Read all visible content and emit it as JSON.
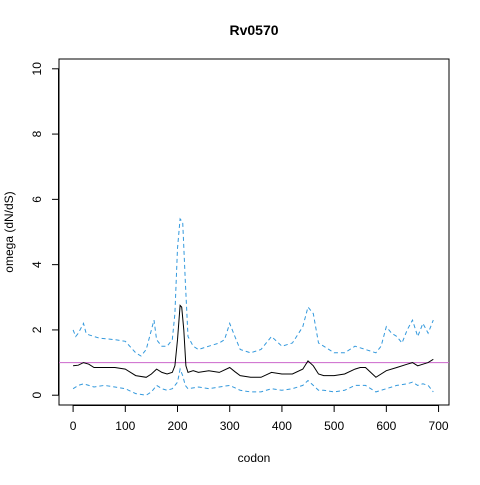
{
  "chart_data": {
    "type": "line",
    "title": "Rv0570",
    "xlabel": "codon",
    "ylabel": "omega (dN/dS)",
    "xlim": [
      -27,
      720
    ],
    "ylim": [
      -0.3,
      10.3
    ],
    "x_ticks": [
      0,
      100,
      200,
      300,
      400,
      500,
      600,
      700
    ],
    "y_ticks": [
      0,
      2,
      4,
      6,
      8,
      10
    ],
    "grid": false,
    "legend": "none",
    "reference_line": {
      "y": 1.0,
      "color": "#cc66cc"
    },
    "series": [
      {
        "role": "estimate",
        "color": "#000000",
        "dash": "solid",
        "x": [
          0,
          10,
          20,
          30,
          40,
          60,
          80,
          100,
          120,
          140,
          150,
          160,
          170,
          180,
          190,
          195,
          200,
          205,
          208,
          212,
          216,
          220,
          230,
          240,
          260,
          280,
          300,
          310,
          320,
          340,
          360,
          380,
          400,
          420,
          440,
          450,
          460,
          470,
          480,
          500,
          520,
          540,
          550,
          560,
          570,
          580,
          600,
          620,
          640,
          650,
          660,
          670,
          680,
          690
        ],
        "y": [
          0.9,
          0.92,
          1.0,
          0.95,
          0.85,
          0.85,
          0.85,
          0.8,
          0.6,
          0.55,
          0.65,
          0.8,
          0.7,
          0.65,
          0.7,
          0.9,
          1.7,
          2.75,
          2.7,
          2.0,
          0.9,
          0.7,
          0.75,
          0.7,
          0.75,
          0.7,
          0.85,
          0.72,
          0.6,
          0.55,
          0.55,
          0.7,
          0.65,
          0.65,
          0.8,
          1.05,
          0.9,
          0.65,
          0.6,
          0.6,
          0.65,
          0.8,
          0.85,
          0.85,
          0.7,
          0.55,
          0.75,
          0.85,
          0.95,
          1.0,
          0.9,
          0.95,
          1.0,
          1.1
        ]
      },
      {
        "role": "upper bound",
        "color": "#3399dd",
        "dash": "dashed",
        "x": [
          0,
          5,
          10,
          20,
          25,
          30,
          50,
          80,
          100,
          120,
          130,
          140,
          150,
          155,
          160,
          165,
          170,
          180,
          190,
          195,
          200,
          205,
          210,
          215,
          220,
          230,
          240,
          260,
          280,
          290,
          300,
          310,
          320,
          340,
          360,
          380,
          400,
          420,
          440,
          450,
          460,
          470,
          480,
          500,
          520,
          540,
          560,
          580,
          590,
          600,
          610,
          620,
          630,
          640,
          650,
          660,
          670,
          680,
          690
        ],
        "y": [
          2.0,
          1.8,
          1.9,
          2.2,
          1.9,
          1.85,
          1.75,
          1.7,
          1.65,
          1.3,
          1.2,
          1.4,
          2.0,
          2.3,
          1.7,
          1.6,
          1.5,
          1.5,
          1.7,
          2.5,
          4.5,
          5.4,
          5.3,
          3.5,
          1.8,
          1.5,
          1.4,
          1.5,
          1.6,
          1.7,
          2.2,
          1.8,
          1.4,
          1.3,
          1.4,
          1.8,
          1.5,
          1.6,
          2.1,
          2.7,
          2.5,
          1.6,
          1.5,
          1.3,
          1.3,
          1.5,
          1.4,
          1.3,
          1.5,
          2.1,
          1.9,
          1.8,
          1.6,
          2.0,
          2.3,
          1.8,
          2.2,
          1.9,
          2.3
        ]
      },
      {
        "role": "lower bound",
        "color": "#3399dd",
        "dash": "dashed",
        "x": [
          0,
          10,
          20,
          30,
          40,
          60,
          80,
          100,
          120,
          140,
          150,
          160,
          170,
          180,
          190,
          200,
          205,
          210,
          215,
          220,
          240,
          260,
          280,
          300,
          320,
          340,
          360,
          380,
          400,
          420,
          440,
          450,
          460,
          470,
          480,
          500,
          520,
          540,
          560,
          580,
          600,
          620,
          640,
          650,
          660,
          670,
          680,
          690
        ],
        "y": [
          0.2,
          0.3,
          0.35,
          0.3,
          0.25,
          0.3,
          0.25,
          0.2,
          0.05,
          0.0,
          0.1,
          0.3,
          0.2,
          0.15,
          0.2,
          0.4,
          0.8,
          0.6,
          0.3,
          0.2,
          0.25,
          0.2,
          0.25,
          0.3,
          0.15,
          0.1,
          0.1,
          0.2,
          0.15,
          0.2,
          0.3,
          0.45,
          0.3,
          0.15,
          0.15,
          0.1,
          0.15,
          0.3,
          0.3,
          0.1,
          0.2,
          0.3,
          0.35,
          0.4,
          0.3,
          0.35,
          0.3,
          0.1
        ]
      }
    ]
  }
}
